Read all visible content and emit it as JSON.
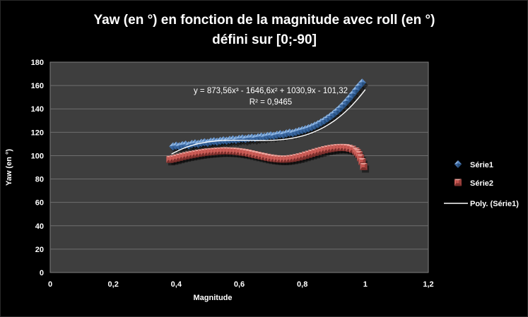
{
  "title": {
    "line1": "Yaw (en °) en fonction de la magnitude avec roll (en °)",
    "line2": "défini sur [0;-90]"
  },
  "annotation": {
    "equation": "y = 873,56x³ - 1646,6x² + 1030,9x - 101,32",
    "r_squared": "R² = 0,9465"
  },
  "legend": {
    "position": "right",
    "items": [
      {
        "label": "Série1",
        "marker": "diamond"
      },
      {
        "label": "Série2",
        "marker": "square"
      },
      {
        "label": "Poly. (Série1)",
        "marker": "line"
      }
    ]
  },
  "colors": {
    "background": "#000000",
    "plot_background": "#3E3E3E",
    "gridline": "#6E6E6E",
    "plot_border": "#7F7F7F",
    "text": "#FFFFFF",
    "trendline": "#FFFFFF",
    "serie1": "#4F81BD",
    "serie2": "#C0504D"
  },
  "chart_data": {
    "type": "scatter",
    "title": "Yaw (en °) en fonction de la magnitude avec roll (en °) défini sur [0;-90]",
    "xlabel": "Magnitude",
    "ylabel": "Yaw (en °)",
    "xlim": [
      0,
      1.2
    ],
    "ylim": [
      0,
      180
    ],
    "x_tick_labels": [
      "0",
      "0,2",
      "0,4",
      "0,6",
      "0,8",
      "1",
      "1,2"
    ],
    "x_tick_values": [
      0,
      0.2,
      0.4,
      0.6,
      0.8,
      1,
      1.2
    ],
    "y_tick_values": [
      0,
      20,
      40,
      60,
      80,
      100,
      120,
      140,
      160,
      180
    ],
    "grid": "horizontal",
    "legend_position": "right",
    "series": [
      {
        "name": "Série1",
        "marker": "diamond",
        "color": "#4F81BD",
        "facets": {
          "nw": "#8DB5E2",
          "ne": "#5585C2",
          "se": "#27507F",
          "sw": "#3A67A1"
        },
        "points": [
          [
            0.39,
            107.8
          ],
          [
            0.4,
            108.4
          ],
          [
            0.41,
            108.0
          ],
          [
            0.42,
            108.9
          ],
          [
            0.43,
            109.3
          ],
          [
            0.44,
            108.8
          ],
          [
            0.45,
            109.9
          ],
          [
            0.46,
            110.4
          ],
          [
            0.47,
            110.0
          ],
          [
            0.48,
            110.9
          ],
          [
            0.49,
            111.4
          ],
          [
            0.5,
            111.0
          ],
          [
            0.51,
            111.9
          ],
          [
            0.52,
            112.3
          ],
          [
            0.53,
            111.9
          ],
          [
            0.54,
            112.6
          ],
          [
            0.55,
            113.0
          ],
          [
            0.56,
            112.7
          ],
          [
            0.57,
            113.4
          ],
          [
            0.58,
            113.8
          ],
          [
            0.59,
            113.5
          ],
          [
            0.6,
            114.2
          ],
          [
            0.61,
            114.6
          ],
          [
            0.62,
            114.2
          ],
          [
            0.63,
            114.9
          ],
          [
            0.64,
            115.3
          ],
          [
            0.65,
            115.0
          ],
          [
            0.66,
            115.7
          ],
          [
            0.67,
            116.2
          ],
          [
            0.68,
            115.9
          ],
          [
            0.69,
            116.7
          ],
          [
            0.7,
            117.2
          ],
          [
            0.71,
            116.9
          ],
          [
            0.72,
            117.7
          ],
          [
            0.73,
            118.3
          ],
          [
            0.74,
            118.0
          ],
          [
            0.75,
            118.9
          ],
          [
            0.76,
            119.6
          ],
          [
            0.77,
            119.3
          ],
          [
            0.78,
            120.2
          ],
          [
            0.79,
            121.0
          ],
          [
            0.8,
            121.8
          ],
          [
            0.81,
            122.5
          ],
          [
            0.82,
            123.4
          ],
          [
            0.83,
            124.4
          ],
          [
            0.84,
            125.6
          ],
          [
            0.85,
            126.9
          ],
          [
            0.86,
            128.4
          ],
          [
            0.87,
            130.0
          ],
          [
            0.88,
            131.8
          ],
          [
            0.89,
            133.7
          ],
          [
            0.9,
            135.8
          ],
          [
            0.91,
            138.1
          ],
          [
            0.92,
            140.6
          ],
          [
            0.93,
            143.3
          ],
          [
            0.94,
            146.2
          ],
          [
            0.95,
            149.3
          ],
          [
            0.96,
            152.6
          ],
          [
            0.97,
            156.0
          ],
          [
            0.98,
            159.3
          ],
          [
            0.99,
            162.3
          ]
        ]
      },
      {
        "name": "Série2",
        "marker": "square",
        "color": "#C0504D",
        "facets": {
          "top": "#EDA49D",
          "left": "#CD615B",
          "right": "#993E3A",
          "bottom": "#7C2F2C",
          "center": "#C5534E"
        },
        "points": [
          [
            0.38,
            96.8
          ],
          [
            0.39,
            97.3
          ],
          [
            0.4,
            97.9
          ],
          [
            0.41,
            98.6
          ],
          [
            0.42,
            99.3
          ],
          [
            0.43,
            99.9
          ],
          [
            0.44,
            100.5
          ],
          [
            0.45,
            101.0
          ],
          [
            0.46,
            101.5
          ],
          [
            0.47,
            102.0
          ],
          [
            0.48,
            102.4
          ],
          [
            0.49,
            102.8
          ],
          [
            0.5,
            103.1
          ],
          [
            0.51,
            103.4
          ],
          [
            0.52,
            103.6
          ],
          [
            0.53,
            103.8
          ],
          [
            0.54,
            104.0
          ],
          [
            0.55,
            104.1
          ],
          [
            0.56,
            104.1
          ],
          [
            0.57,
            104.0
          ],
          [
            0.58,
            103.9
          ],
          [
            0.59,
            103.7
          ],
          [
            0.6,
            103.4
          ],
          [
            0.61,
            103.0
          ],
          [
            0.62,
            102.6
          ],
          [
            0.63,
            102.1
          ],
          [
            0.64,
            101.5
          ],
          [
            0.65,
            100.9
          ],
          [
            0.66,
            100.3
          ],
          [
            0.67,
            99.7
          ],
          [
            0.68,
            99.1
          ],
          [
            0.69,
            98.5
          ],
          [
            0.7,
            98.0
          ],
          [
            0.71,
            97.6
          ],
          [
            0.72,
            97.3
          ],
          [
            0.73,
            97.1
          ],
          [
            0.74,
            97.0
          ],
          [
            0.75,
            97.1
          ],
          [
            0.76,
            97.4
          ],
          [
            0.77,
            97.8
          ],
          [
            0.78,
            98.3
          ],
          [
            0.79,
            98.9
          ],
          [
            0.8,
            99.6
          ],
          [
            0.81,
            100.4
          ],
          [
            0.82,
            101.2
          ],
          [
            0.83,
            102.0
          ],
          [
            0.84,
            102.8
          ],
          [
            0.85,
            103.6
          ],
          [
            0.86,
            104.3
          ],
          [
            0.87,
            105.0
          ],
          [
            0.88,
            105.6
          ],
          [
            0.89,
            106.1
          ],
          [
            0.9,
            106.5
          ],
          [
            0.91,
            106.8
          ],
          [
            0.92,
            107.0
          ],
          [
            0.93,
            107.0
          ],
          [
            0.94,
            106.8
          ],
          [
            0.95,
            106.3
          ],
          [
            0.96,
            105.4
          ],
          [
            0.97,
            103.9
          ],
          [
            0.975,
            102.5
          ],
          [
            0.98,
            100.8
          ],
          [
            0.985,
            98.0
          ],
          [
            0.99,
            94.8
          ],
          [
            0.995,
            90.6
          ]
        ]
      }
    ],
    "trendline": {
      "name": "Poly. (Série1)",
      "applies_to": "Série1",
      "type": "polynomial",
      "degree": 3,
      "coefficients": [
        873.56,
        -1646.6,
        1030.9,
        -101.32
      ],
      "r2": 0.9465,
      "domain": [
        0.385,
        1.0
      ],
      "color": "#FFFFFF"
    }
  }
}
